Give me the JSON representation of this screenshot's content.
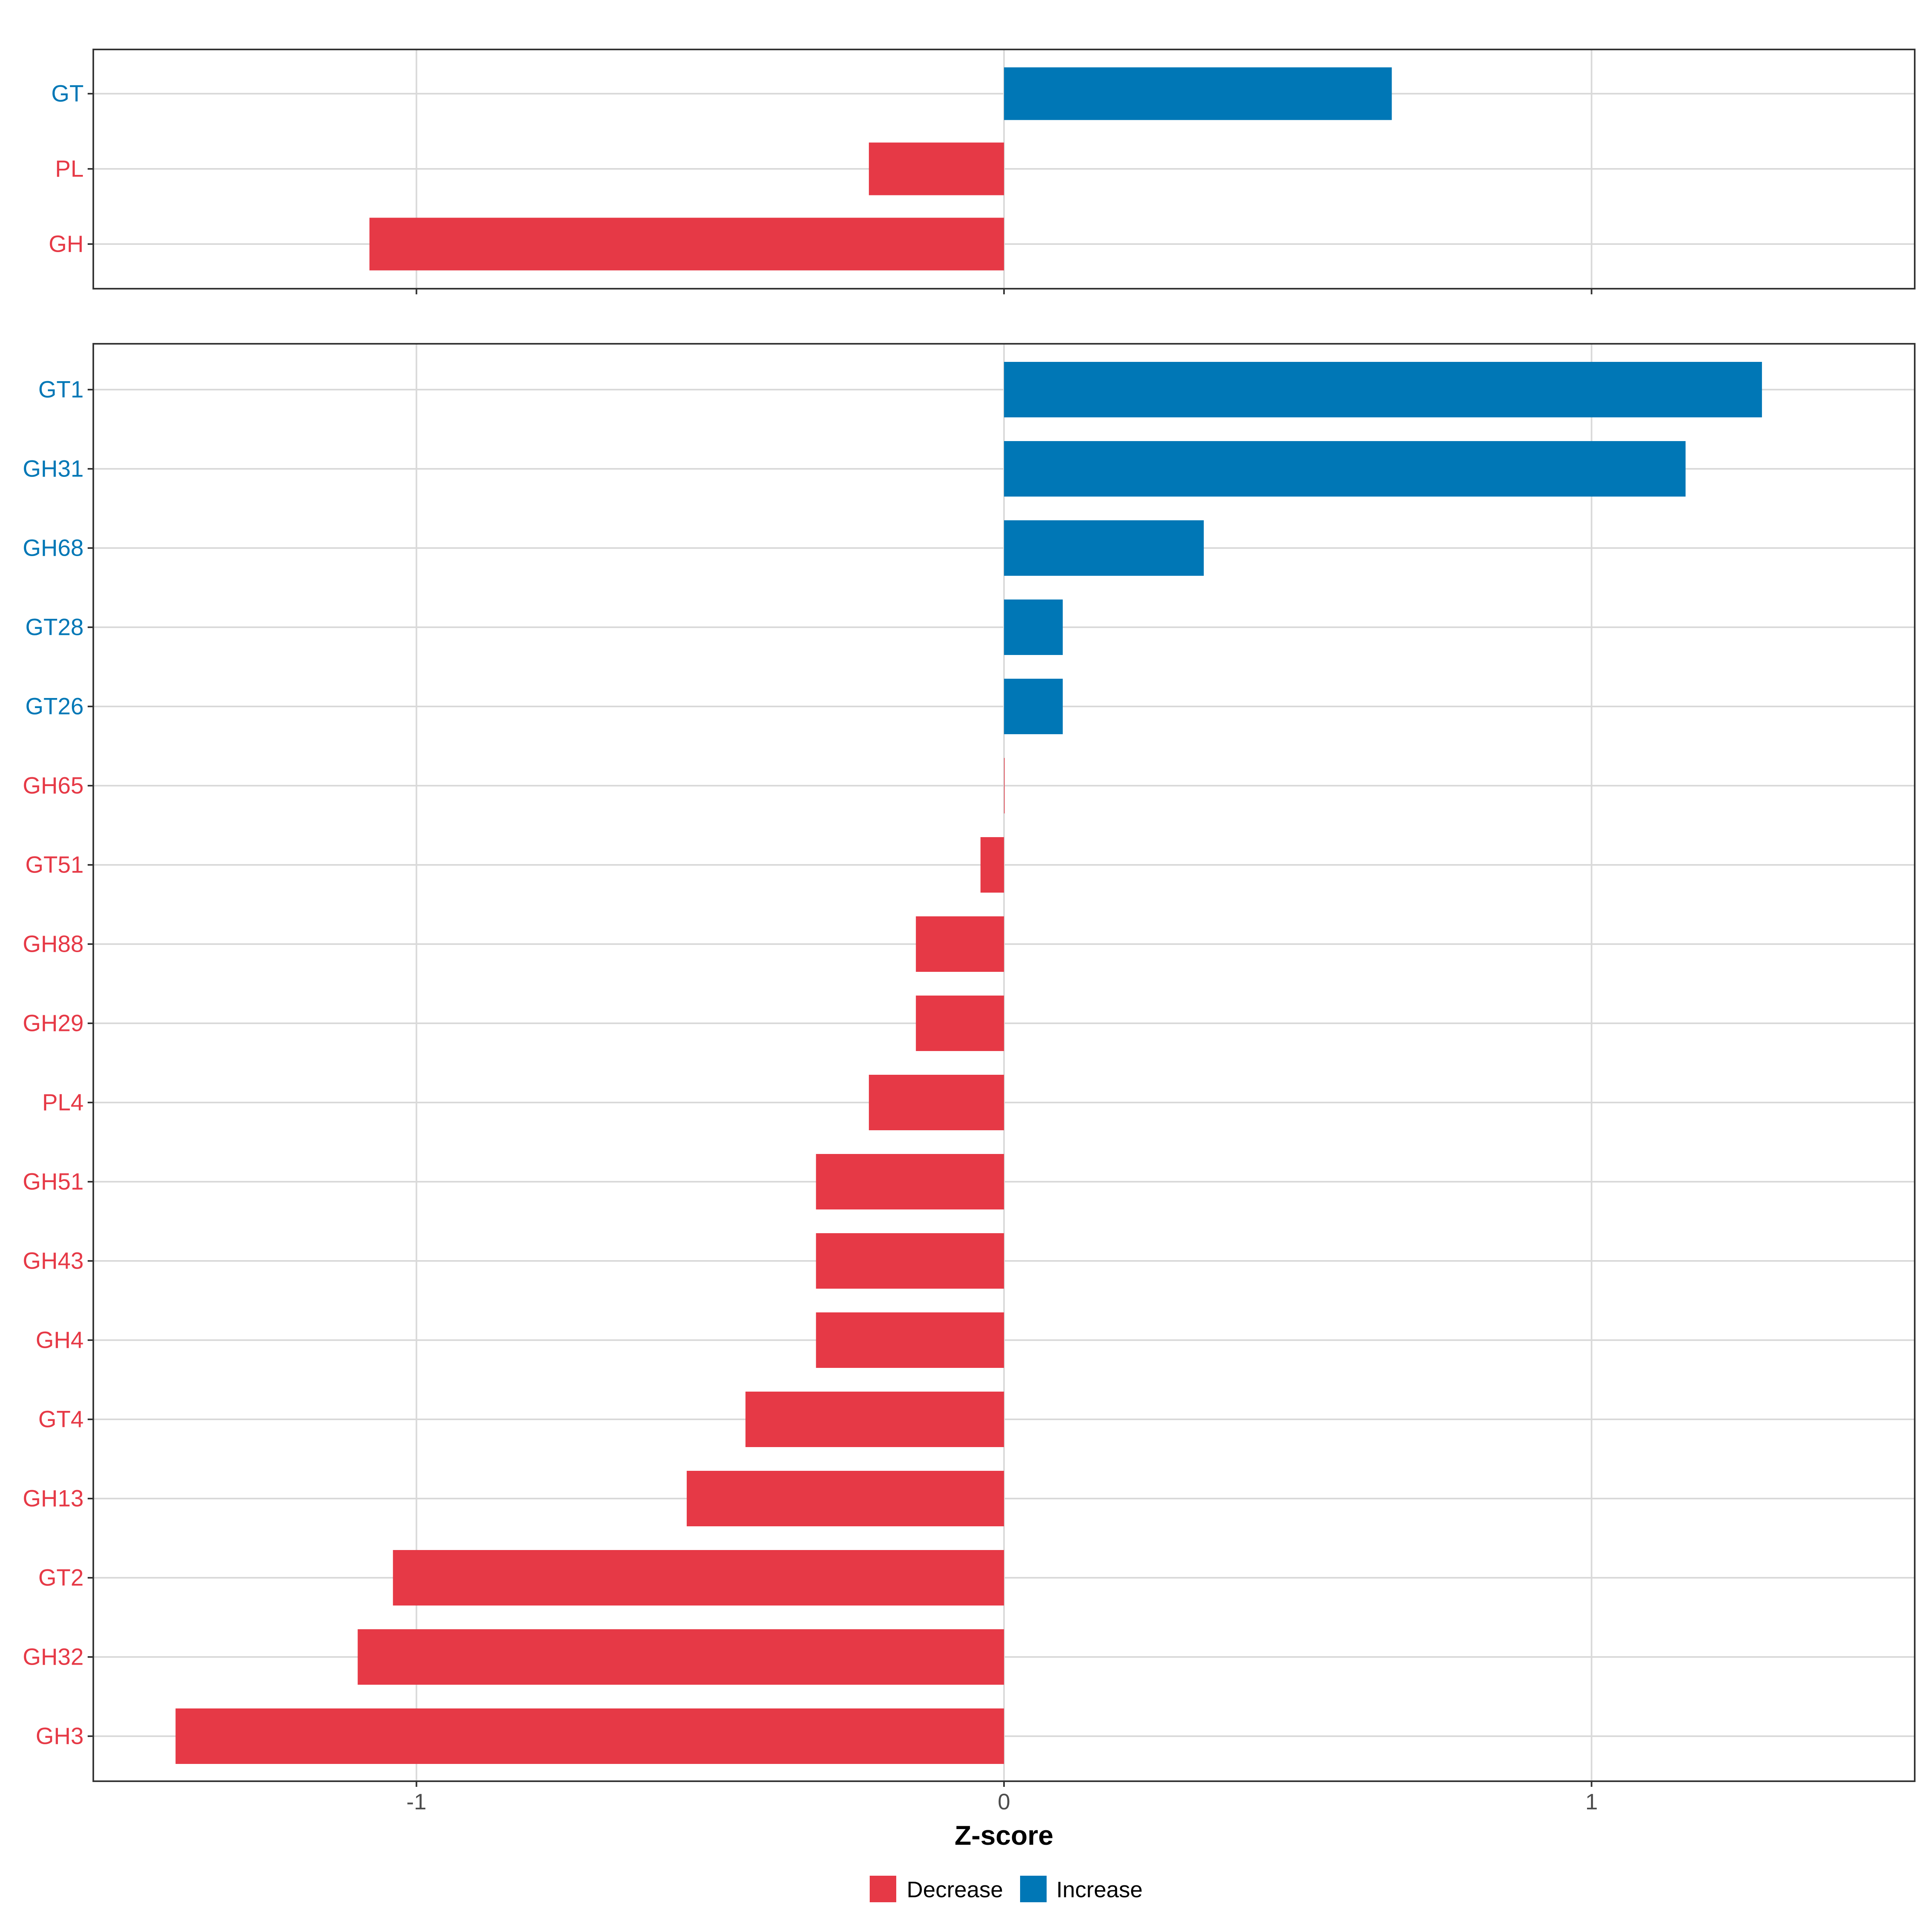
{
  "chart_data": [
    {
      "type": "bar",
      "orientation": "horizontal",
      "panel": "top",
      "categories": [
        "GT",
        "PL",
        "GH"
      ],
      "values": [
        0.66,
        -0.23,
        -1.08
      ],
      "xlim": [
        -1.55,
        1.55
      ],
      "x_ticks": [
        -1,
        0,
        1
      ],
      "x_tick_labels": [
        "",
        "",
        ""
      ],
      "xlabel": "",
      "grid": true
    },
    {
      "type": "bar",
      "orientation": "horizontal",
      "panel": "bottom",
      "categories": [
        "GT1",
        "GH31",
        "GH68",
        "GT28",
        "GT26",
        "GH65",
        "GT51",
        "GH88",
        "GH29",
        "PL4",
        "GH51",
        "GH43",
        "GH4",
        "GT4",
        "GH13",
        "GT2",
        "GH32",
        "GH3"
      ],
      "values": [
        1.29,
        1.16,
        0.34,
        0.1,
        0.1,
        0.0,
        -0.04,
        -0.15,
        -0.15,
        -0.23,
        -0.32,
        -0.32,
        -0.32,
        -0.44,
        -0.54,
        -1.04,
        -1.1,
        -1.41
      ],
      "xlim": [
        -1.55,
        1.55
      ],
      "x_ticks": [
        -1,
        0,
        1
      ],
      "x_tick_labels": [
        "-1",
        "0",
        "1"
      ],
      "xlabel": "Z-score",
      "grid": true
    }
  ],
  "legend": {
    "placement": "bottom",
    "items": [
      {
        "label": "Decrease",
        "color": "#E63946"
      },
      {
        "label": "Increase",
        "color": "#0077B6"
      }
    ]
  },
  "colors": {
    "decrease": "#E63946",
    "increase": "#0077B6",
    "grid": "#D9D9D9",
    "axis": "#333333",
    "tick_text": "#4D4D4D"
  }
}
